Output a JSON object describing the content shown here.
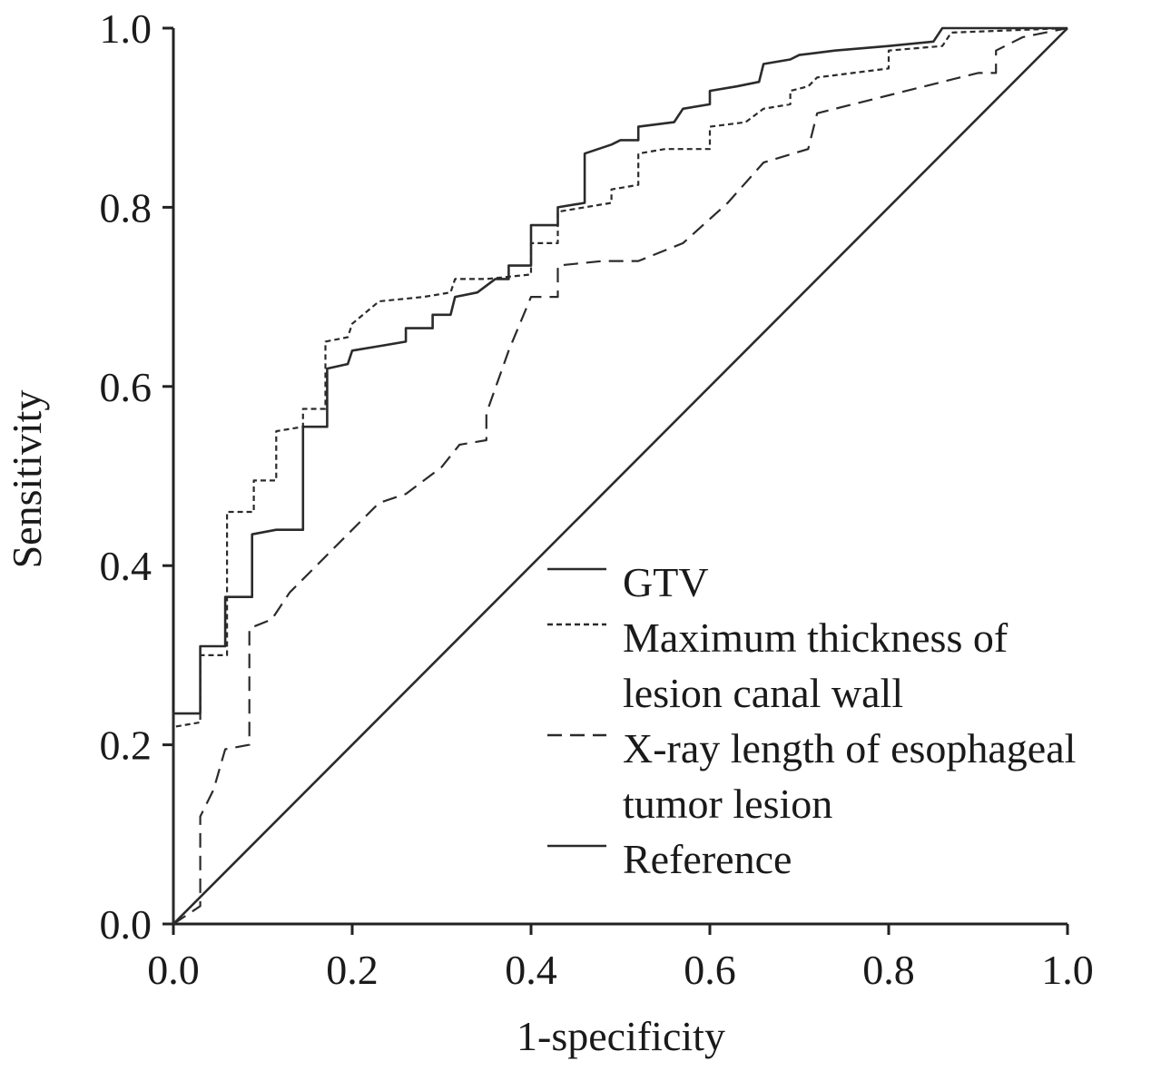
{
  "chart_data": {
    "type": "line",
    "title": "",
    "xlabel": "1-specificity",
    "ylabel": "Sensitivity",
    "xlim": [
      0,
      1
    ],
    "ylim": [
      0,
      1
    ],
    "x_ticks": [
      "0.0",
      "0.2",
      "0.4",
      "0.6",
      "0.8",
      "1.0"
    ],
    "y_ticks": [
      "0.0",
      "0.2",
      "0.4",
      "0.6",
      "0.8",
      "1.0"
    ],
    "grid": false,
    "legend_position": "bottom-right",
    "series": [
      {
        "name": "GTV",
        "style": "solid",
        "points": [
          [
            0,
            0
          ],
          [
            0,
            0.235
          ],
          [
            0.03,
            0.235
          ],
          [
            0.03,
            0.31
          ],
          [
            0.058,
            0.31
          ],
          [
            0.058,
            0.365
          ],
          [
            0.088,
            0.365
          ],
          [
            0.088,
            0.435
          ],
          [
            0.115,
            0.44
          ],
          [
            0.145,
            0.44
          ],
          [
            0.145,
            0.555
          ],
          [
            0.172,
            0.555
          ],
          [
            0.172,
            0.62
          ],
          [
            0.195,
            0.625
          ],
          [
            0.2,
            0.64
          ],
          [
            0.23,
            0.645
          ],
          [
            0.26,
            0.65
          ],
          [
            0.26,
            0.665
          ],
          [
            0.29,
            0.665
          ],
          [
            0.29,
            0.68
          ],
          [
            0.31,
            0.68
          ],
          [
            0.315,
            0.7
          ],
          [
            0.34,
            0.705
          ],
          [
            0.36,
            0.72
          ],
          [
            0.375,
            0.72
          ],
          [
            0.375,
            0.735
          ],
          [
            0.4,
            0.735
          ],
          [
            0.4,
            0.78
          ],
          [
            0.43,
            0.78
          ],
          [
            0.43,
            0.8
          ],
          [
            0.46,
            0.805
          ],
          [
            0.46,
            0.86
          ],
          [
            0.49,
            0.87
          ],
          [
            0.5,
            0.875
          ],
          [
            0.52,
            0.875
          ],
          [
            0.52,
            0.89
          ],
          [
            0.56,
            0.895
          ],
          [
            0.57,
            0.91
          ],
          [
            0.6,
            0.915
          ],
          [
            0.6,
            0.93
          ],
          [
            0.63,
            0.935
          ],
          [
            0.655,
            0.94
          ],
          [
            0.66,
            0.96
          ],
          [
            0.69,
            0.965
          ],
          [
            0.7,
            0.97
          ],
          [
            0.74,
            0.975
          ],
          [
            0.8,
            0.98
          ],
          [
            0.85,
            0.985
          ],
          [
            0.86,
            1.0
          ],
          [
            1.0,
            1.0
          ]
        ]
      },
      {
        "name": "Maximum thickness of lesion canal wall",
        "style": "dotted",
        "points": [
          [
            0,
            0
          ],
          [
            0,
            0.22
          ],
          [
            0.03,
            0.225
          ],
          [
            0.03,
            0.3
          ],
          [
            0.06,
            0.3
          ],
          [
            0.06,
            0.46
          ],
          [
            0.09,
            0.46
          ],
          [
            0.09,
            0.495
          ],
          [
            0.115,
            0.495
          ],
          [
            0.115,
            0.55
          ],
          [
            0.145,
            0.555
          ],
          [
            0.145,
            0.575
          ],
          [
            0.17,
            0.575
          ],
          [
            0.17,
            0.65
          ],
          [
            0.195,
            0.655
          ],
          [
            0.2,
            0.67
          ],
          [
            0.23,
            0.695
          ],
          [
            0.28,
            0.7
          ],
          [
            0.31,
            0.705
          ],
          [
            0.315,
            0.72
          ],
          [
            0.35,
            0.72
          ],
          [
            0.4,
            0.725
          ],
          [
            0.4,
            0.76
          ],
          [
            0.43,
            0.76
          ],
          [
            0.43,
            0.795
          ],
          [
            0.46,
            0.8
          ],
          [
            0.49,
            0.805
          ],
          [
            0.49,
            0.82
          ],
          [
            0.52,
            0.825
          ],
          [
            0.52,
            0.86
          ],
          [
            0.55,
            0.865
          ],
          [
            0.6,
            0.865
          ],
          [
            0.6,
            0.89
          ],
          [
            0.64,
            0.895
          ],
          [
            0.66,
            0.91
          ],
          [
            0.69,
            0.915
          ],
          [
            0.69,
            0.93
          ],
          [
            0.71,
            0.935
          ],
          [
            0.72,
            0.945
          ],
          [
            0.76,
            0.95
          ],
          [
            0.8,
            0.955
          ],
          [
            0.8,
            0.975
          ],
          [
            0.86,
            0.98
          ],
          [
            0.87,
            0.995
          ],
          [
            1.0,
            1.0
          ]
        ]
      },
      {
        "name": "X-ray length of esophageal tumor lesion",
        "style": "dashed",
        "points": [
          [
            0,
            0
          ],
          [
            0.03,
            0.02
          ],
          [
            0.03,
            0.12
          ],
          [
            0.045,
            0.15
          ],
          [
            0.058,
            0.195
          ],
          [
            0.085,
            0.2
          ],
          [
            0.085,
            0.33
          ],
          [
            0.11,
            0.34
          ],
          [
            0.13,
            0.37
          ],
          [
            0.17,
            0.41
          ],
          [
            0.2,
            0.44
          ],
          [
            0.23,
            0.47
          ],
          [
            0.26,
            0.48
          ],
          [
            0.3,
            0.51
          ],
          [
            0.32,
            0.535
          ],
          [
            0.35,
            0.54
          ],
          [
            0.35,
            0.57
          ],
          [
            0.375,
            0.64
          ],
          [
            0.4,
            0.7
          ],
          [
            0.43,
            0.7
          ],
          [
            0.43,
            0.735
          ],
          [
            0.48,
            0.74
          ],
          [
            0.52,
            0.74
          ],
          [
            0.57,
            0.76
          ],
          [
            0.62,
            0.805
          ],
          [
            0.66,
            0.85
          ],
          [
            0.71,
            0.865
          ],
          [
            0.72,
            0.905
          ],
          [
            0.8,
            0.925
          ],
          [
            0.86,
            0.94
          ],
          [
            0.9,
            0.95
          ],
          [
            0.92,
            0.95
          ],
          [
            0.92,
            0.975
          ],
          [
            0.95,
            0.99
          ],
          [
            1.0,
            1.0
          ]
        ]
      },
      {
        "name": "Reference",
        "style": "solid",
        "points": [
          [
            0,
            0
          ],
          [
            1,
            1
          ]
        ]
      }
    ],
    "legend": [
      {
        "lines": [
          "GTV"
        ],
        "style": "solid"
      },
      {
        "lines": [
          "Maximum thickness of",
          "lesion canal wall"
        ],
        "style": "dotted"
      },
      {
        "lines": [
          "X-ray length of esophageal",
          "tumor lesion"
        ],
        "style": "dashed"
      },
      {
        "lines": [
          "Reference"
        ],
        "style": "solid"
      }
    ]
  }
}
